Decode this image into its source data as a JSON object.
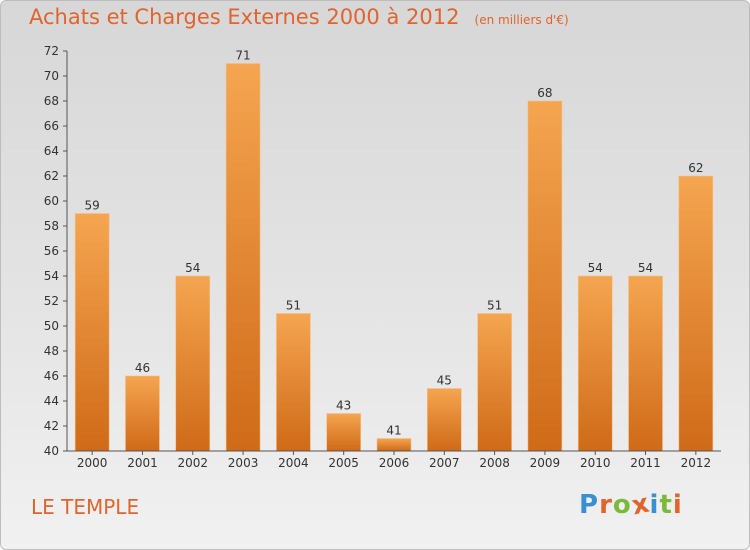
{
  "header": {
    "title": "Achats et Charges Externes 2000 à 2012",
    "subtitle": "(en milliers d'€)"
  },
  "footer": {
    "commune": "LE TEMPLE",
    "brand": "Proxiti"
  },
  "colors": {
    "bar_top": "#f5a550",
    "bar_bottom": "#cf6a18",
    "title": "#e0642d",
    "brand_letters": [
      "#3a8fd0",
      "#e0642d",
      "#7cb83a",
      "#e0642d",
      "#3a8fd0",
      "#7cb83a",
      "#e0642d"
    ]
  },
  "chart_data": {
    "type": "bar",
    "title": "Achats et Charges Externes 2000 à 2012",
    "subtitle": "(en milliers d'€)",
    "xlabel": "",
    "ylabel": "",
    "categories": [
      "2000",
      "2001",
      "2002",
      "2003",
      "2004",
      "2005",
      "2006",
      "2007",
      "2008",
      "2009",
      "2010",
      "2011",
      "2012"
    ],
    "values": [
      59,
      46,
      54,
      71,
      51,
      43,
      41,
      45,
      51,
      68,
      54,
      54,
      62
    ],
    "ylim": [
      40,
      72
    ],
    "yticks": [
      40,
      42,
      44,
      46,
      48,
      50,
      52,
      54,
      56,
      58,
      60,
      62,
      64,
      66,
      68,
      70,
      72
    ],
    "grid": false,
    "data_labels": true
  }
}
